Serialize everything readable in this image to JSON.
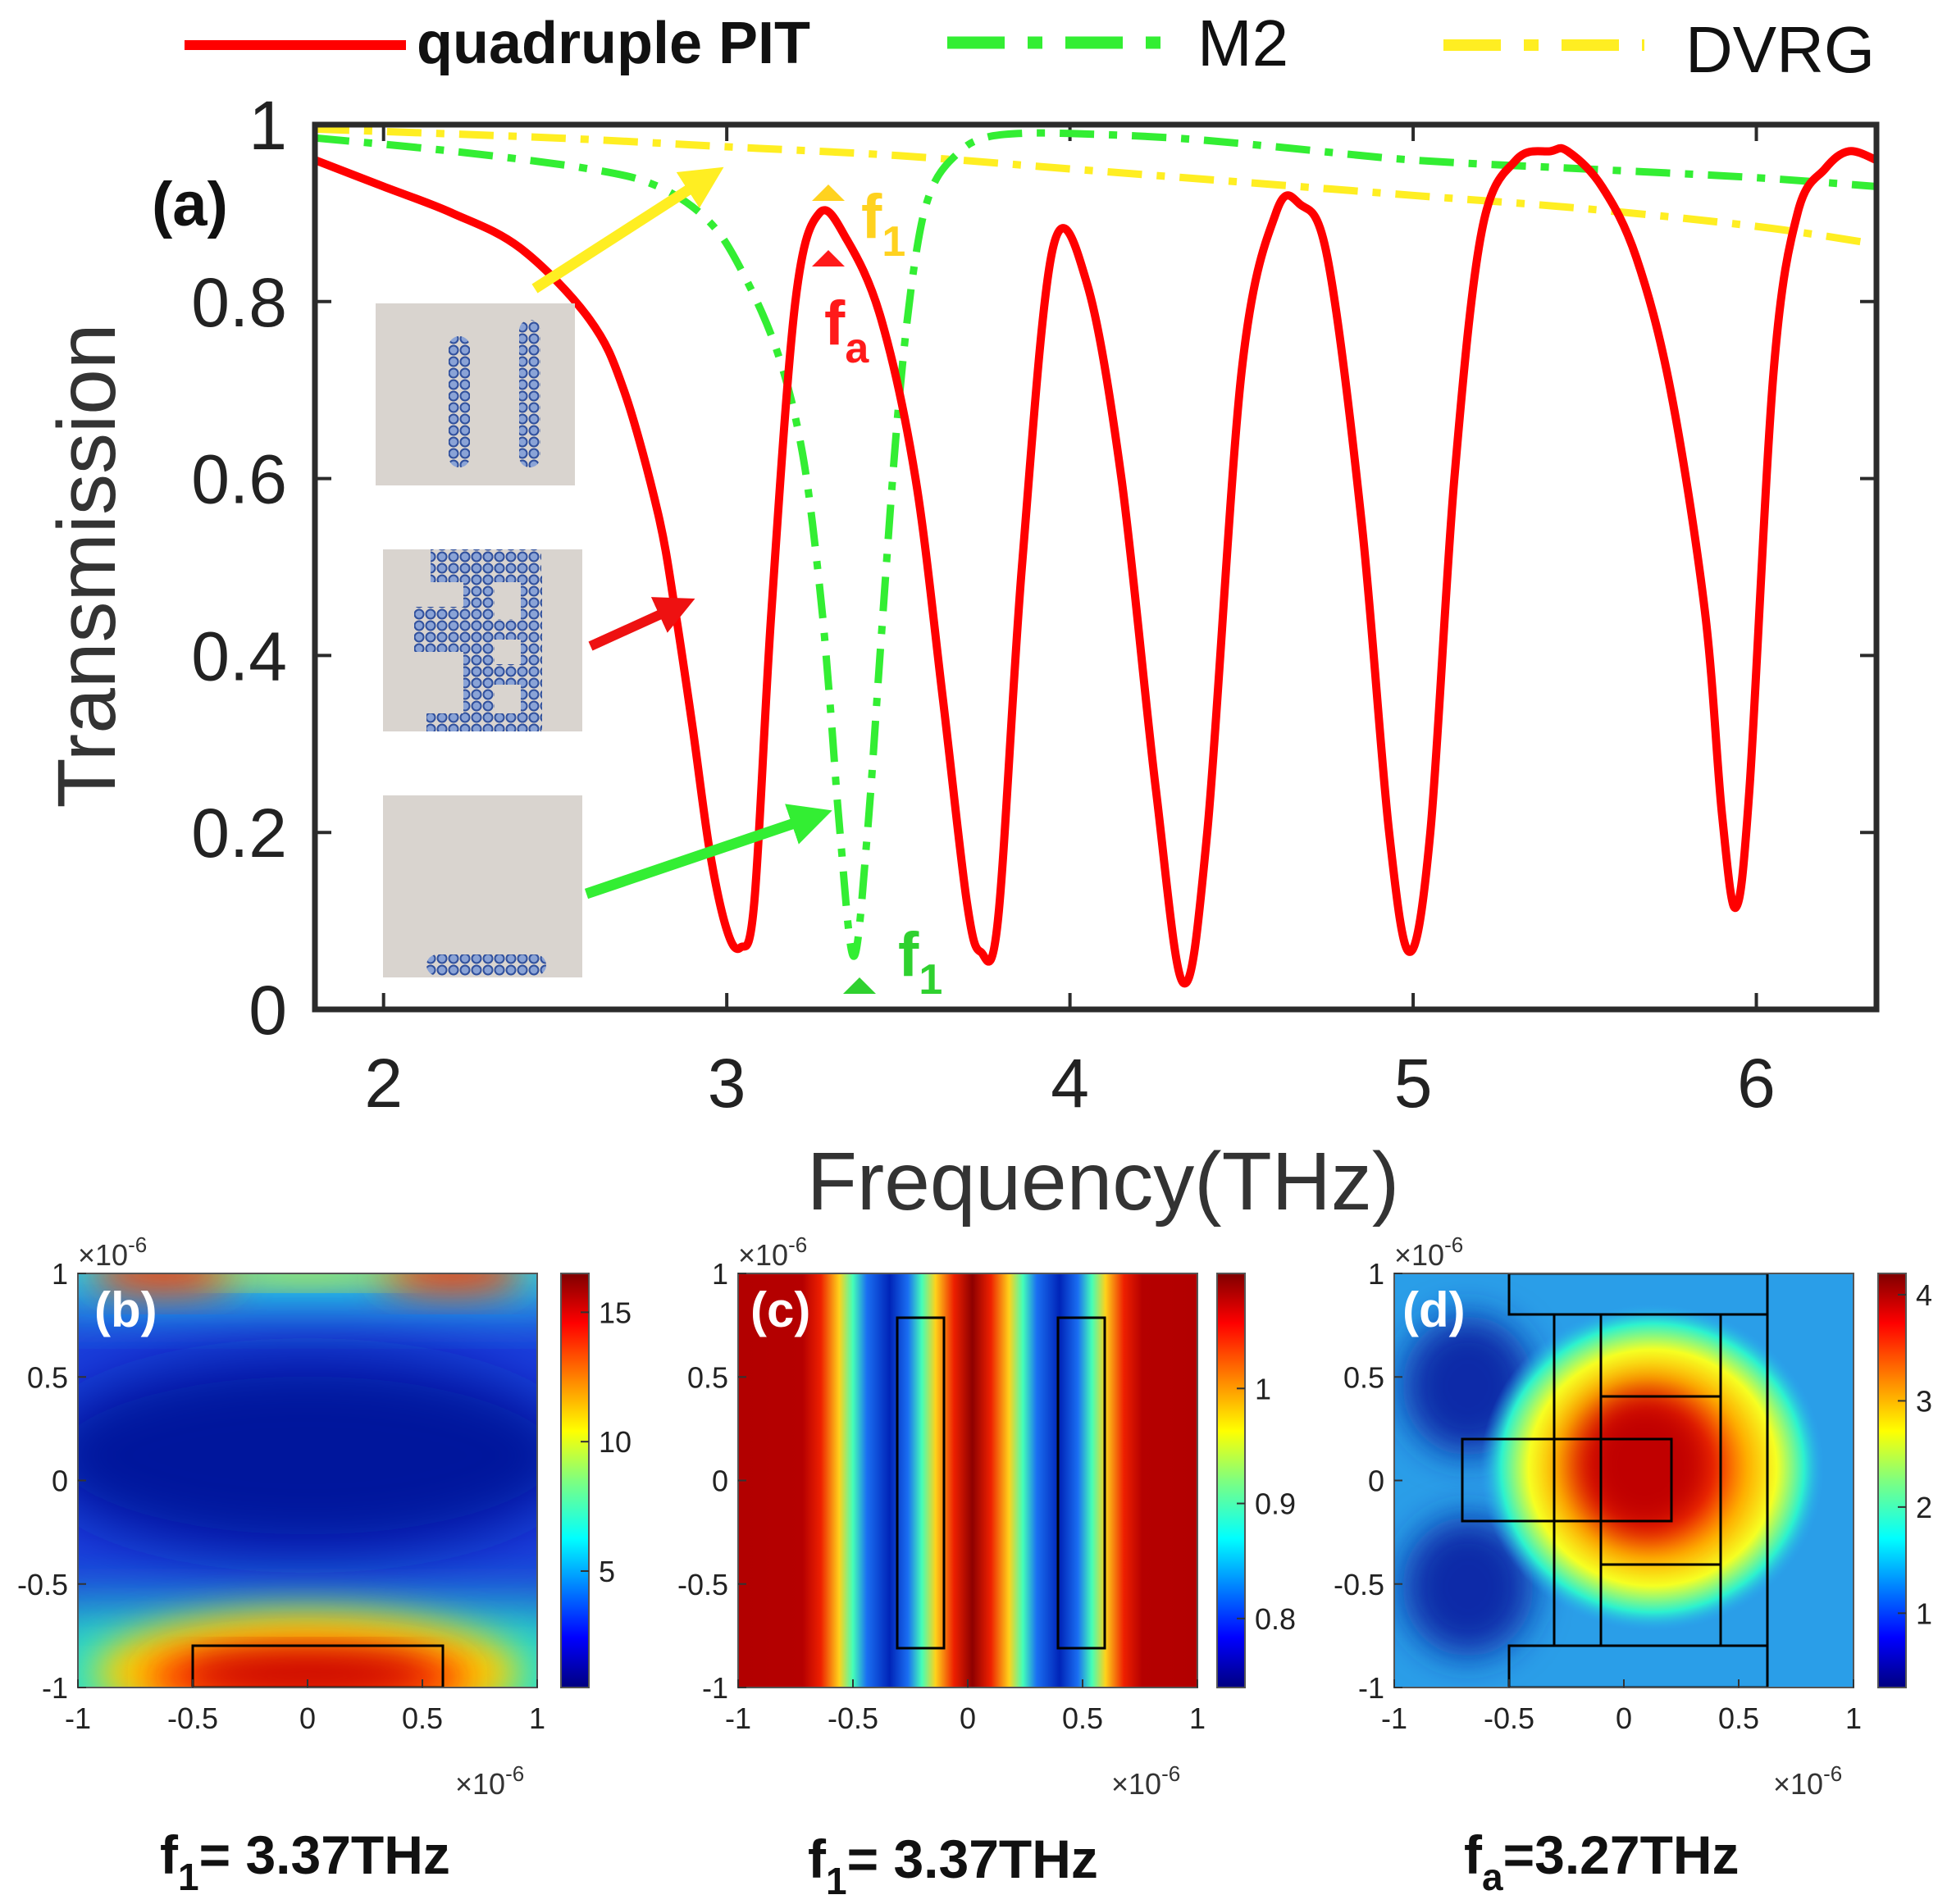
{
  "legend": [
    {
      "label": "quadruple PIT",
      "color": "#ff0000",
      "style": "solid"
    },
    {
      "label": "M2",
      "color": "#33ee33",
      "style": "dashdot"
    },
    {
      "label": "DVRG",
      "color": "#ffee22",
      "style": "dashdot"
    }
  ],
  "chart_data": [
    {
      "type": "line",
      "panel_label": "(a)",
      "xlabel": "Frequency(THz)",
      "ylabel": "Transmission",
      "xlim": [
        1.8,
        6.35
      ],
      "ylim": [
        0,
        1
      ],
      "xticks": [
        "2",
        "3",
        "4",
        "5",
        "6"
      ],
      "yticks": [
        "0",
        "0.2",
        "0.4",
        "0.6",
        "0.8",
        "1"
      ],
      "series": [
        {
          "name": "quadruple PIT",
          "color": "#ff0000",
          "x": [
            1.8,
            2.0,
            2.2,
            2.4,
            2.6,
            2.7,
            2.8,
            2.85,
            2.9,
            2.95,
            3.0,
            3.04,
            3.08,
            3.13,
            3.2,
            3.27,
            3.35,
            3.45,
            3.55,
            3.63,
            3.7,
            3.74,
            3.79,
            3.86,
            3.95,
            4.05,
            4.15,
            4.25,
            4.33,
            4.4,
            4.5,
            4.6,
            4.67,
            4.75,
            4.85,
            4.93,
            4.99,
            5.05,
            5.12,
            5.2,
            5.3,
            5.4,
            5.45,
            5.55,
            5.65,
            5.75,
            5.85,
            5.9,
            5.94,
            5.98,
            6.05,
            6.12,
            6.2,
            6.27,
            6.35
          ],
          "y": [
            0.96,
            0.93,
            0.9,
            0.86,
            0.78,
            0.7,
            0.56,
            0.45,
            0.32,
            0.18,
            0.09,
            0.07,
            0.12,
            0.45,
            0.8,
            0.9,
            0.87,
            0.78,
            0.6,
            0.35,
            0.12,
            0.065,
            0.1,
            0.5,
            0.86,
            0.82,
            0.6,
            0.25,
            0.03,
            0.2,
            0.72,
            0.9,
            0.91,
            0.85,
            0.55,
            0.2,
            0.065,
            0.2,
            0.6,
            0.88,
            0.96,
            0.97,
            0.97,
            0.93,
            0.85,
            0.7,
            0.45,
            0.22,
            0.115,
            0.25,
            0.72,
            0.9,
            0.95,
            0.97,
            0.96
          ]
        },
        {
          "name": "M2",
          "color": "#33ee33",
          "x": [
            1.8,
            2.2,
            2.6,
            2.8,
            2.95,
            3.05,
            3.15,
            3.22,
            3.27,
            3.3,
            3.33,
            3.37,
            3.41,
            3.45,
            3.5,
            3.55,
            3.6,
            3.68,
            3.75,
            3.85,
            4.0,
            4.3,
            4.6,
            5.0,
            5.5,
            6.0,
            6.35
          ],
          "y": [
            0.985,
            0.97,
            0.95,
            0.93,
            0.89,
            0.83,
            0.74,
            0.63,
            0.48,
            0.35,
            0.2,
            0.06,
            0.2,
            0.42,
            0.68,
            0.85,
            0.93,
            0.97,
            0.985,
            0.99,
            0.99,
            0.985,
            0.975,
            0.96,
            0.95,
            0.94,
            0.93
          ]
        },
        {
          "name": "DVRG",
          "color": "#ffee22",
          "x": [
            1.8,
            2.5,
            3.0,
            3.5,
            4.0,
            4.5,
            5.0,
            5.5,
            6.0,
            6.35
          ],
          "y": [
            0.995,
            0.985,
            0.975,
            0.965,
            0.95,
            0.935,
            0.92,
            0.905,
            0.885,
            0.865
          ]
        }
      ],
      "annotations": [
        {
          "base": "f",
          "sub": "1",
          "color": "#ffd21f"
        },
        {
          "base": "f",
          "sub": "a",
          "color": "#ff1a1a"
        },
        {
          "base": "f",
          "sub": "1",
          "color": "#2fd12f"
        }
      ]
    },
    {
      "type": "heatmap",
      "panel_label": "(b)",
      "xlim": [
        -1,
        1
      ],
      "ylim": [
        -1,
        1
      ],
      "xticks": [
        "-1",
        "-0.5",
        "0",
        "0.5",
        "1"
      ],
      "yticks": [
        "-1",
        "-0.5",
        "0",
        "0.5",
        "1"
      ],
      "scale_base": "×10",
      "scale_exp": "-6",
      "colorbar_ticks": [
        "5",
        "10",
        "15"
      ],
      "colorbar_range": [
        0.5,
        16.5
      ],
      "caption_base": "f",
      "caption_sub": "1",
      "caption_rest": "= 3.37THz"
    },
    {
      "type": "heatmap",
      "panel_label": "(c)",
      "xlim": [
        -1,
        1
      ],
      "ylim": [
        -1,
        1
      ],
      "xticks": [
        "-1",
        "-0.5",
        "0",
        "0.5",
        "1"
      ],
      "yticks": [
        "-1",
        "-0.5",
        "0",
        "0.5",
        "1"
      ],
      "scale_base": "×10",
      "scale_exp": "-6",
      "colorbar_ticks": [
        "0.8",
        "0.9",
        "1"
      ],
      "colorbar_range": [
        0.74,
        1.1
      ],
      "caption_base": "f",
      "caption_sub": "1",
      "caption_rest": "= 3.37THz"
    },
    {
      "type": "heatmap",
      "panel_label": "(d)",
      "xlim": [
        -1,
        1
      ],
      "ylim": [
        -1,
        1
      ],
      "xticks": [
        "-1",
        "-0.5",
        "0",
        "0.5",
        "1"
      ],
      "yticks": [
        "-1",
        "-0.5",
        "0",
        "0.5",
        "1"
      ],
      "scale_base": "×10",
      "scale_exp": "-6",
      "colorbar_ticks": [
        "1",
        "2",
        "3",
        "4"
      ],
      "colorbar_range": [
        0.3,
        4.2
      ],
      "caption_base": "f",
      "caption_sub": "a",
      "caption_rest": "=3.27THz"
    }
  ]
}
